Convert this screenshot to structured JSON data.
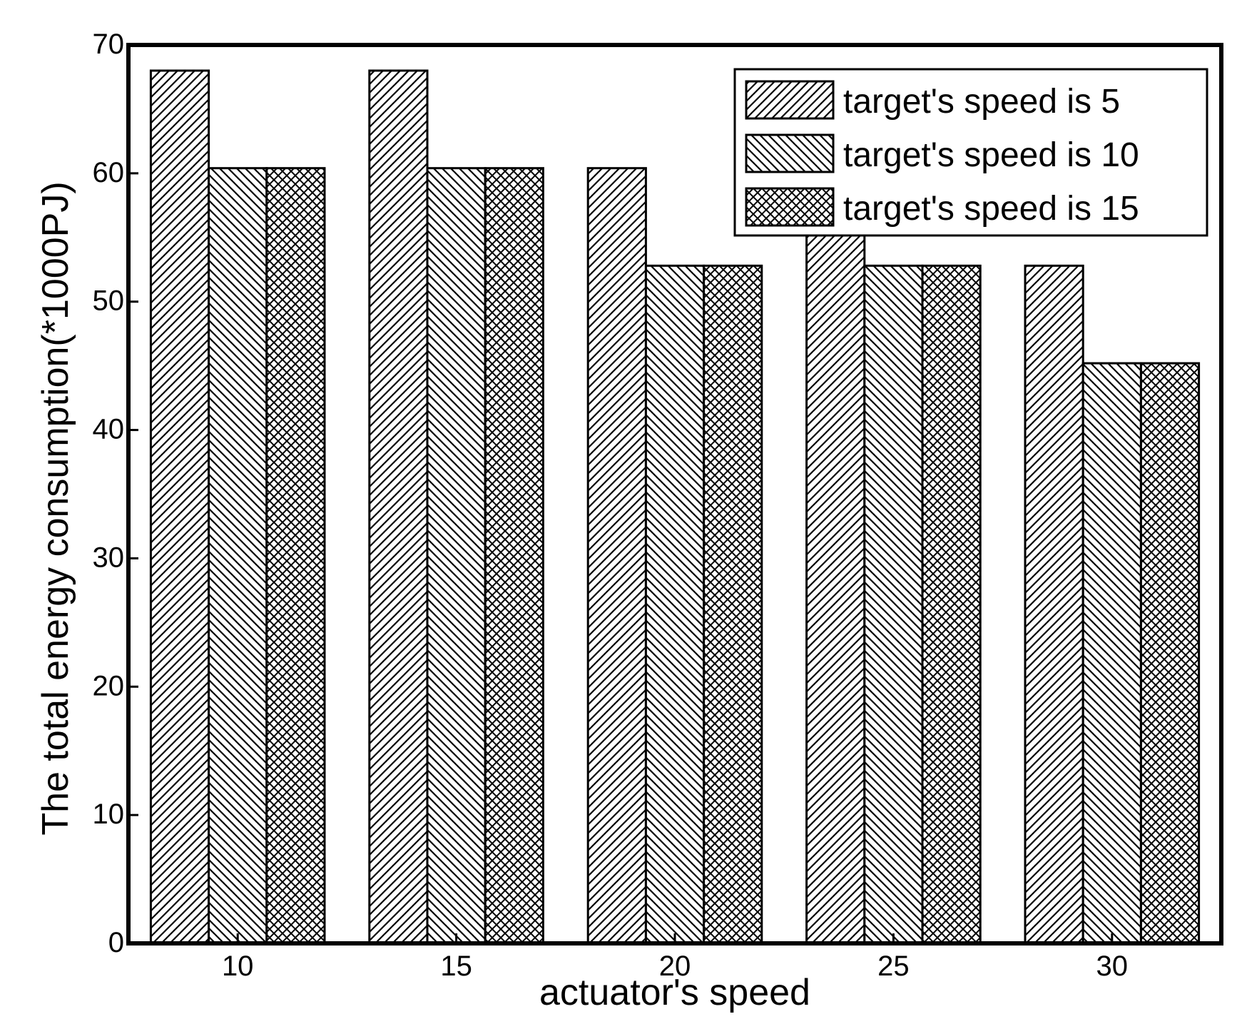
{
  "chart_data": {
    "type": "bar",
    "title": "",
    "xlabel": "actuator's speed",
    "ylabel": "The total energy consumption(*1000PJ)",
    "categories": [
      "10",
      "15",
      "20",
      "25",
      "30"
    ],
    "series": [
      {
        "name": "target's speed is 5",
        "pattern": "hatch-forward",
        "values": [
          68,
          68,
          60.4,
          55.3,
          52.8
        ]
      },
      {
        "name": "target's speed is 10",
        "pattern": "hatch-backward",
        "values": [
          60.4,
          60.4,
          52.8,
          52.8,
          45.2
        ]
      },
      {
        "name": "target's speed is 15",
        "pattern": "crosshatch",
        "values": [
          60.4,
          60.4,
          52.8,
          52.8,
          45.2
        ]
      }
    ],
    "ylim": [
      0,
      70
    ],
    "yticks": [
      "0",
      "10",
      "20",
      "30",
      "40",
      "50",
      "60",
      "70"
    ],
    "grid": false,
    "legend_position": "top-right",
    "colors": {
      "bar_fill": "#ffffff",
      "bar_stroke": "#000000",
      "hatch": "#000000"
    }
  }
}
